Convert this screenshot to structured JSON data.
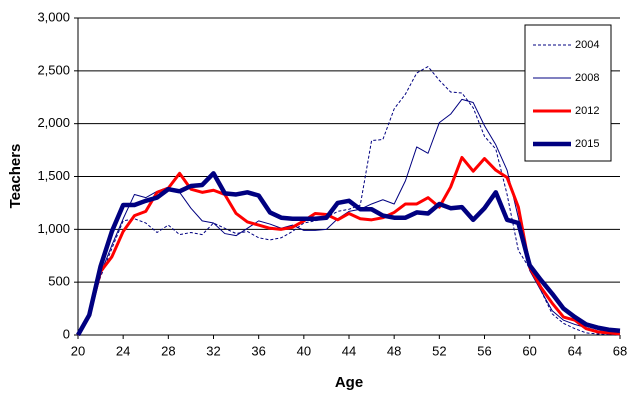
{
  "chart_data": {
    "type": "line",
    "xlabel": "Age",
    "ylabel": "Teachers",
    "x": [
      20,
      21,
      22,
      23,
      24,
      25,
      26,
      27,
      28,
      29,
      30,
      31,
      32,
      33,
      34,
      35,
      36,
      37,
      38,
      39,
      40,
      41,
      42,
      43,
      44,
      45,
      46,
      47,
      48,
      49,
      50,
      51,
      52,
      53,
      54,
      55,
      56,
      57,
      58,
      59,
      60,
      61,
      62,
      63,
      64,
      65,
      66,
      67,
      68
    ],
    "series": [
      {
        "name": "2004",
        "color": "#000080",
        "line_width": 1,
        "line_style": "dashed",
        "values": [
          0,
          200,
          550,
          820,
          1080,
          1100,
          1060,
          970,
          1040,
          950,
          970,
          950,
          1060,
          1010,
          960,
          980,
          920,
          900,
          920,
          980,
          1060,
          1080,
          1110,
          1170,
          1190,
          1230,
          1840,
          1850,
          2140,
          2280,
          2480,
          2540,
          2410,
          2300,
          2290,
          2150,
          1880,
          1760,
          1330,
          800,
          630,
          420,
          200,
          110,
          60,
          20,
          10,
          5,
          0
        ]
      },
      {
        "name": "2008",
        "color": "#000080",
        "line_width": 1,
        "line_style": "solid",
        "values": [
          0,
          200,
          580,
          850,
          1100,
          1330,
          1300,
          1360,
          1400,
          1350,
          1200,
          1080,
          1060,
          960,
          940,
          1010,
          1080,
          1050,
          1010,
          1040,
          990,
          990,
          1000,
          1100,
          1170,
          1190,
          1240,
          1280,
          1240,
          1460,
          1780,
          1720,
          2010,
          2090,
          2230,
          2200,
          1980,
          1800,
          1560,
          1110,
          610,
          420,
          230,
          140,
          100,
          70,
          40,
          30,
          20
        ]
      },
      {
        "name": "2012",
        "color": "#ff0000",
        "line_width": 3,
        "line_style": "solid",
        "values": [
          0,
          190,
          600,
          740,
          980,
          1130,
          1170,
          1350,
          1390,
          1530,
          1380,
          1350,
          1370,
          1330,
          1150,
          1070,
          1040,
          1010,
          1000,
          1020,
          1080,
          1150,
          1140,
          1090,
          1150,
          1100,
          1090,
          1110,
          1160,
          1240,
          1240,
          1300,
          1210,
          1400,
          1680,
          1550,
          1670,
          1560,
          1490,
          1210,
          640,
          450,
          300,
          170,
          140,
          60,
          30,
          20,
          10
        ]
      },
      {
        "name": "2015",
        "color": "#000080",
        "line_width": 4.5,
        "line_style": "solid",
        "values": [
          0,
          190,
          650,
          980,
          1230,
          1230,
          1270,
          1300,
          1380,
          1360,
          1410,
          1420,
          1530,
          1340,
          1330,
          1350,
          1320,
          1160,
          1110,
          1100,
          1100,
          1100,
          1110,
          1250,
          1270,
          1190,
          1190,
          1130,
          1110,
          1110,
          1160,
          1150,
          1240,
          1200,
          1210,
          1090,
          1200,
          1350,
          1090,
          1060,
          660,
          520,
          390,
          250,
          170,
          100,
          70,
          50,
          40
        ]
      }
    ],
    "xlim": [
      20,
      68
    ],
    "xticks": [
      20,
      24,
      28,
      32,
      36,
      40,
      44,
      48,
      52,
      56,
      60,
      64,
      68
    ],
    "ylim": [
      0,
      3000
    ],
    "yticks": [
      0,
      500,
      {
        "value": 1000,
        "label": "1,000"
      },
      {
        "value": 1500,
        "label": "1,500"
      },
      {
        "value": 2000,
        "label": "2,000"
      },
      {
        "value": 2500,
        "label": "2,500"
      },
      {
        "value": 3000,
        "label": "3,000"
      }
    ],
    "grid": true,
    "legend": "top-right"
  }
}
